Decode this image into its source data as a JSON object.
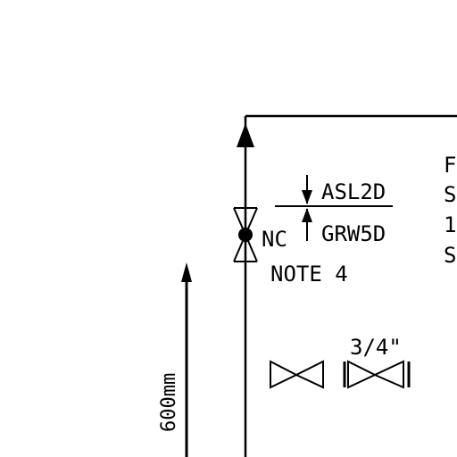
{
  "colors": {
    "line": "#000000",
    "background": "#ffffff"
  },
  "labels": {
    "setpoint_high": "ASL2D",
    "setpoint_low": "GRW5D",
    "valve_state": "NC",
    "note": "NOTE 4",
    "pipe_size": "3/4\"",
    "elevation": "600mm"
  },
  "edge_text": [
    "F",
    "S",
    "1",
    "S"
  ]
}
